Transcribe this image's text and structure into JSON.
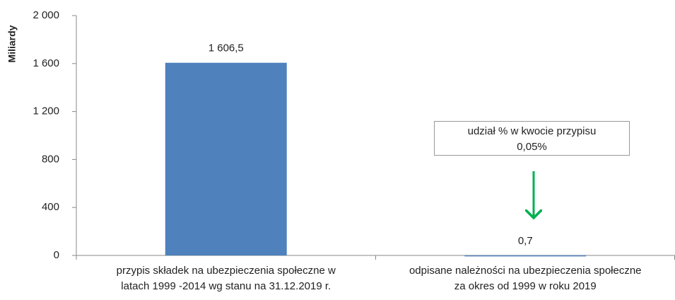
{
  "chart_data": {
    "type": "bar",
    "y_label": "Miliardy",
    "categories": [
      "przypis składek na ubezpieczenia społeczne w\nlatach 1999 -2014 wg stanu na 31.12.2019 r.",
      "odpisane należności na ubezpieczenia społeczne\nza okres od 1999 w roku 2019"
    ],
    "values": [
      1606.5,
      0.7
    ],
    "value_labels": [
      "1 606,5",
      "0,7"
    ],
    "color": "#4f81bd",
    "ylim": [
      0,
      2000
    ],
    "yticks": [
      0,
      400,
      800,
      {
        "value": 1200,
        "label": "1 200"
      },
      {
        "value": 1600,
        "label": "1 600"
      },
      {
        "value": 2000,
        "label": "2 000"
      }
    ],
    "grid": false,
    "annotation": "udział % w kwocie przypisu\n0,05%"
  }
}
